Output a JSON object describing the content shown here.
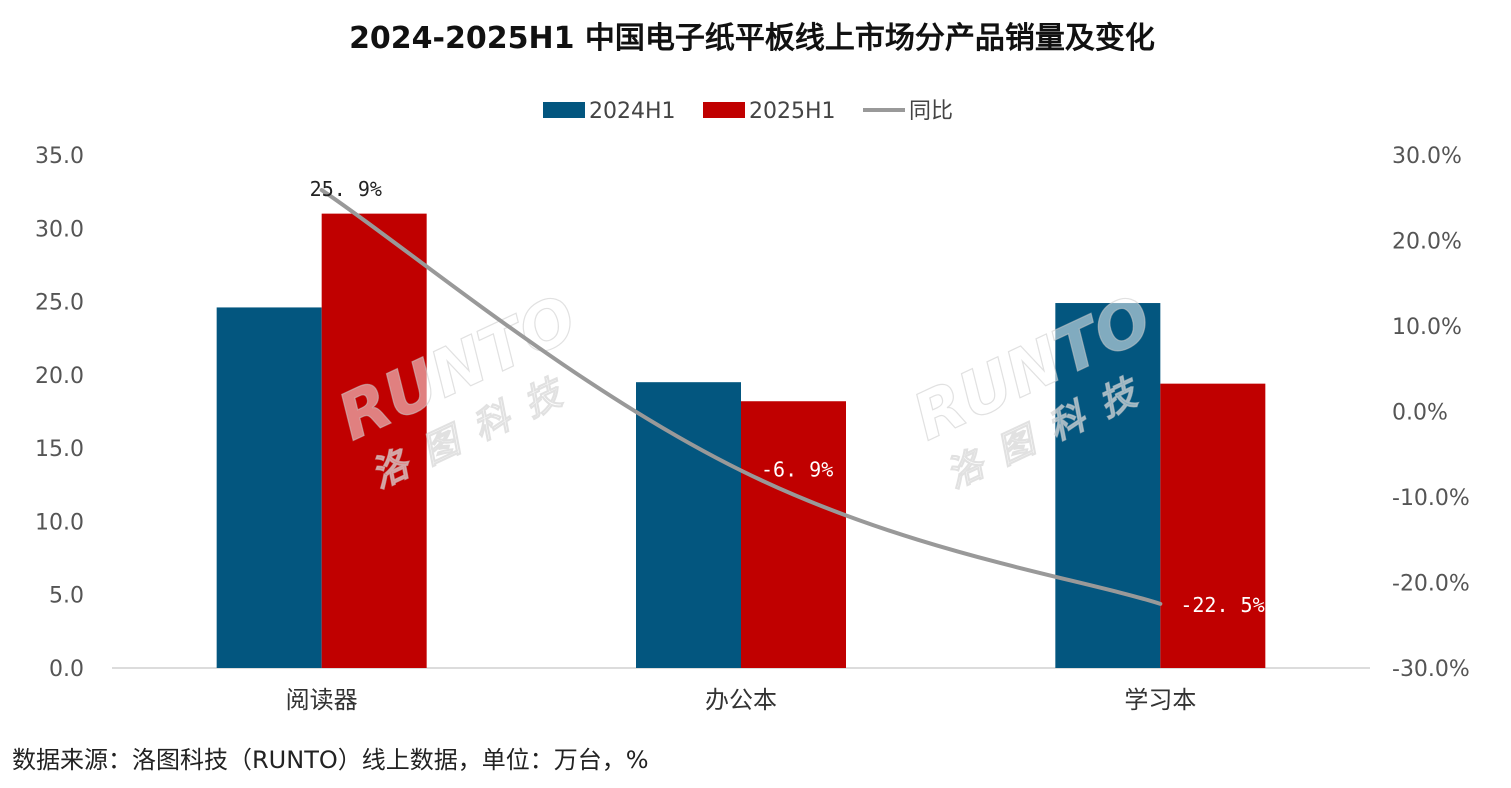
{
  "chart_data": {
    "type": "bar",
    "title": "2024-2025H1 中国电子纸平板线上市场分产品销量及变化",
    "categories": [
      "阅读器",
      "办公本",
      "学习本"
    ],
    "series": [
      {
        "name": "2024H1",
        "values": [
          24.6,
          19.5,
          24.9
        ],
        "color": "#03567f"
      },
      {
        "name": "2025H1",
        "values": [
          31.0,
          18.2,
          19.4
        ],
        "color": "#c00000"
      }
    ],
    "line_series": {
      "name": "同比",
      "values": [
        25.9,
        -6.9,
        -22.5
      ],
      "color": "#999999"
    },
    "line_labels": [
      "25. 9%",
      "-6. 9%",
      "-22. 5%"
    ],
    "y_left": {
      "range": [
        0,
        35
      ],
      "ticks": [
        "0.0",
        "5.0",
        "10.0",
        "15.0",
        "20.0",
        "25.0",
        "30.0",
        "35.0"
      ]
    },
    "y_right": {
      "range": [
        -30,
        30
      ],
      "ticks": [
        "-30.0%",
        "-20.0%",
        "-10.0%",
        "0.0%",
        "10.0%",
        "20.0%",
        "30.0%"
      ]
    },
    "grid": false,
    "legend_position": "top-center"
  },
  "watermark": {
    "latin": "RUNTO",
    "chinese": "洛图科技"
  },
  "source_note": "数据来源：洛图科技（RUNTO）线上数据，单位：万台，%"
}
